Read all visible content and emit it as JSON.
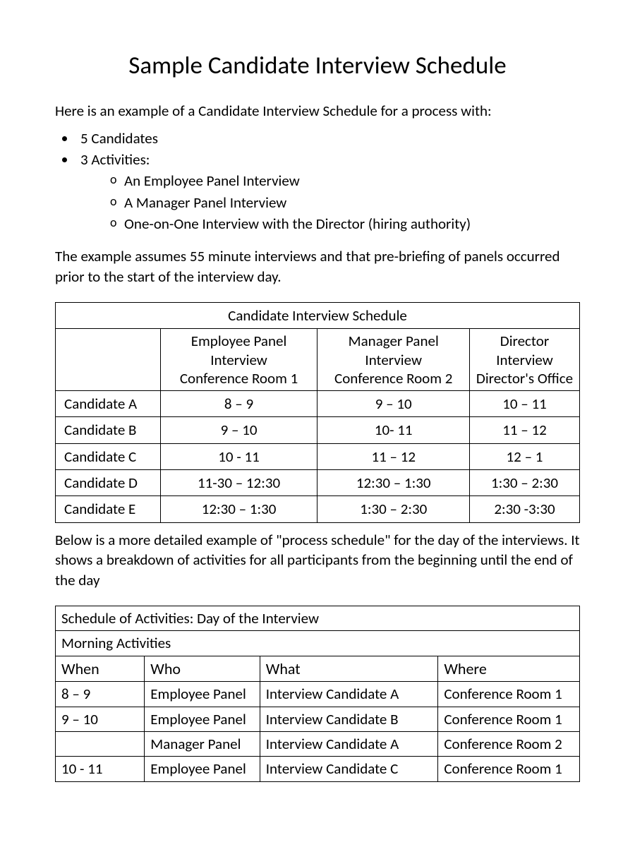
{
  "colors": {
    "text": "#000000",
    "background": "#ffffff",
    "border": "#000000"
  },
  "typography": {
    "body_fontsize": 21,
    "title_fontsize": 35,
    "table_title_fontsize": 24
  },
  "title": "Sample Candidate Interview Schedule",
  "intro": "Here is an example of a Candidate Interview Schedule for a process with:",
  "bullets": {
    "b1": "5 Candidates",
    "b2": "3 Activities:",
    "sub": {
      "s1": "An Employee Panel Interview",
      "s2": "A Manager Panel Interview",
      "s3": "One-on-One Interview with the Director (hiring authority)"
    }
  },
  "assumption": "The example assumes 55 minute interviews and that pre-briefing of panels occurred prior to the start of the interview day.",
  "table1": {
    "type": "table",
    "title": "Candidate Interview Schedule",
    "col_widths_pct": [
      20,
      30,
      29,
      21
    ],
    "columns": {
      "c1_line1": "",
      "c2_line1": "Employee Panel Interview",
      "c2_line2": "Conference Room 1",
      "c3_line1": "Manager Panel Interview",
      "c3_line2": "Conference Room 2",
      "c4_line1": "Director Interview",
      "c4_line2": "Director's Office"
    },
    "rows": [
      {
        "cand": "Candidate A",
        "c2": "8 – 9",
        "c3": "9 – 10",
        "c4": "10 – 11"
      },
      {
        "cand": "Candidate B",
        "c2": "9 – 10",
        "c3": "10- 11",
        "c4": "11 – 12"
      },
      {
        "cand": "Candidate C",
        "c2": "10 - 11",
        "c3": "11 – 12",
        "c4": "12 – 1"
      },
      {
        "cand": "Candidate D",
        "c2": "11-30 – 12:30",
        "c3": "12:30 – 1:30",
        "c4": "1:30 – 2:30"
      },
      {
        "cand": "Candidate E",
        "c2": "12:30 – 1:30",
        "c3": "1:30 – 2:30",
        "c4": "2:30 -3:30"
      }
    ]
  },
  "detail_intro": "Below is a more detailed example of \"process schedule\" for the day of the interviews.  It shows a breakdown of activities for all participants from the beginning until the end of the day",
  "table2": {
    "type": "table",
    "title": "Schedule of Activities: Day of the Interview",
    "subtitle": "Morning Activities",
    "col_widths_pct": [
      17,
      22,
      34,
      27
    ],
    "columns": {
      "c1": "When",
      "c2": "Who",
      "c3": "What",
      "c4": "Where"
    },
    "rows": [
      {
        "when": "8 – 9",
        "who": "Employee Panel",
        "what": "Interview Candidate A",
        "where": "Conference Room 1"
      },
      {
        "when": "9 – 10",
        "who": "Employee Panel",
        "what": "Interview Candidate B",
        "where": "Conference Room 1"
      },
      {
        "when": "",
        "who": "Manager Panel",
        "what": "Interview Candidate A",
        "where": "Conference Room 2"
      },
      {
        "when": "10 - 11",
        "who": "Employee Panel",
        "what": "Interview Candidate C",
        "where": "Conference Room 1"
      }
    ]
  }
}
